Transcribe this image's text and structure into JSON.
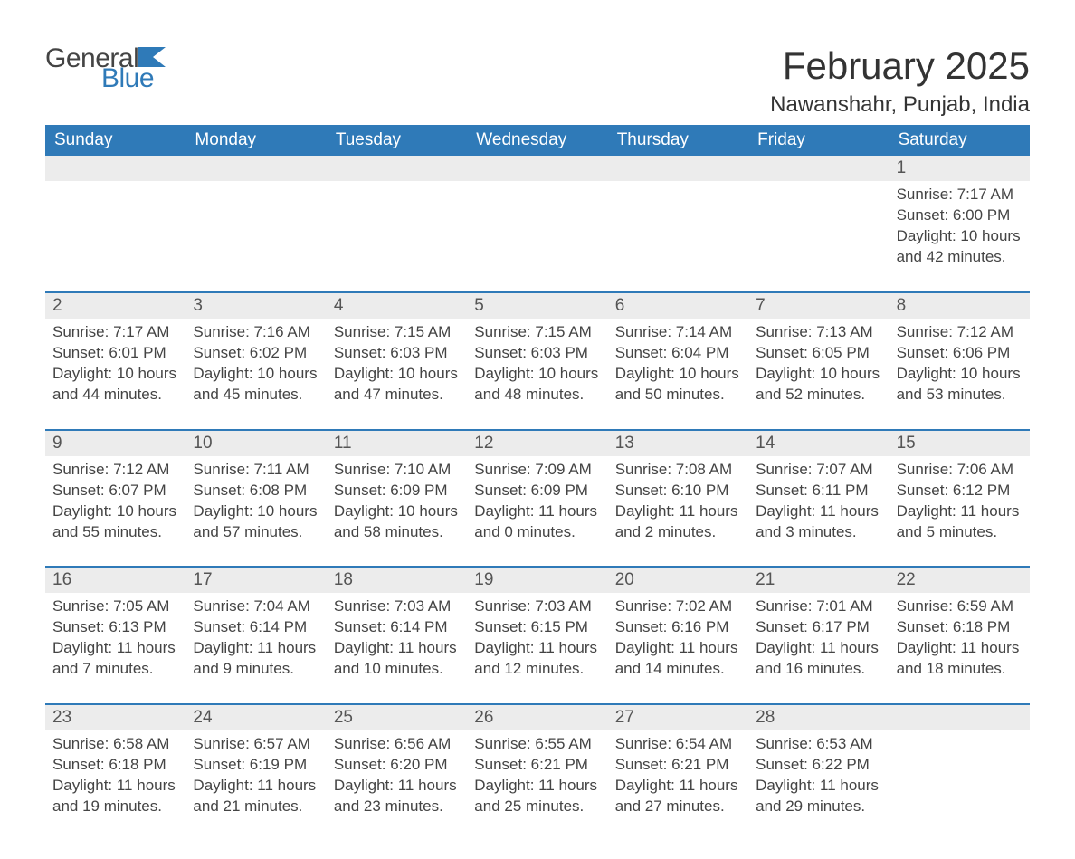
{
  "brand": {
    "part1": "General",
    "part2": "Blue"
  },
  "title": "February 2025",
  "subtitle": "Nawanshahr, Punjab, India",
  "colors": {
    "header_bg": "#2f7ab8",
    "header_text": "#ffffff",
    "daynum_bg": "#ececec",
    "rule": "#2f7ab8",
    "body_text": "#444444",
    "page_bg": "#ffffff"
  },
  "typography": {
    "title_size_pt": 32,
    "subtitle_size_pt": 18,
    "header_size_pt": 14,
    "body_size_pt": 13
  },
  "layout": {
    "type": "calendar",
    "columns": 7,
    "rows": 5,
    "first_weekday": "Sunday"
  },
  "weekdays": [
    "Sunday",
    "Monday",
    "Tuesday",
    "Wednesday",
    "Thursday",
    "Friday",
    "Saturday"
  ],
  "labels": {
    "sunrise": "Sunrise:",
    "sunset": "Sunset:",
    "daylight": "Daylight:"
  },
  "weeks": [
    [
      null,
      null,
      null,
      null,
      null,
      null,
      {
        "n": "1",
        "sunrise": "7:17 AM",
        "sunset": "6:00 PM",
        "daylight": "10 hours and 42 minutes."
      }
    ],
    [
      {
        "n": "2",
        "sunrise": "7:17 AM",
        "sunset": "6:01 PM",
        "daylight": "10 hours and 44 minutes."
      },
      {
        "n": "3",
        "sunrise": "7:16 AM",
        "sunset": "6:02 PM",
        "daylight": "10 hours and 45 minutes."
      },
      {
        "n": "4",
        "sunrise": "7:15 AM",
        "sunset": "6:03 PM",
        "daylight": "10 hours and 47 minutes."
      },
      {
        "n": "5",
        "sunrise": "7:15 AM",
        "sunset": "6:03 PM",
        "daylight": "10 hours and 48 minutes."
      },
      {
        "n": "6",
        "sunrise": "7:14 AM",
        "sunset": "6:04 PM",
        "daylight": "10 hours and 50 minutes."
      },
      {
        "n": "7",
        "sunrise": "7:13 AM",
        "sunset": "6:05 PM",
        "daylight": "10 hours and 52 minutes."
      },
      {
        "n": "8",
        "sunrise": "7:12 AM",
        "sunset": "6:06 PM",
        "daylight": "10 hours and 53 minutes."
      }
    ],
    [
      {
        "n": "9",
        "sunrise": "7:12 AM",
        "sunset": "6:07 PM",
        "daylight": "10 hours and 55 minutes."
      },
      {
        "n": "10",
        "sunrise": "7:11 AM",
        "sunset": "6:08 PM",
        "daylight": "10 hours and 57 minutes."
      },
      {
        "n": "11",
        "sunrise": "7:10 AM",
        "sunset": "6:09 PM",
        "daylight": "10 hours and 58 minutes."
      },
      {
        "n": "12",
        "sunrise": "7:09 AM",
        "sunset": "6:09 PM",
        "daylight": "11 hours and 0 minutes."
      },
      {
        "n": "13",
        "sunrise": "7:08 AM",
        "sunset": "6:10 PM",
        "daylight": "11 hours and 2 minutes."
      },
      {
        "n": "14",
        "sunrise": "7:07 AM",
        "sunset": "6:11 PM",
        "daylight": "11 hours and 3 minutes."
      },
      {
        "n": "15",
        "sunrise": "7:06 AM",
        "sunset": "6:12 PM",
        "daylight": "11 hours and 5 minutes."
      }
    ],
    [
      {
        "n": "16",
        "sunrise": "7:05 AM",
        "sunset": "6:13 PM",
        "daylight": "11 hours and 7 minutes."
      },
      {
        "n": "17",
        "sunrise": "7:04 AM",
        "sunset": "6:14 PM",
        "daylight": "11 hours and 9 minutes."
      },
      {
        "n": "18",
        "sunrise": "7:03 AM",
        "sunset": "6:14 PM",
        "daylight": "11 hours and 10 minutes."
      },
      {
        "n": "19",
        "sunrise": "7:03 AM",
        "sunset": "6:15 PM",
        "daylight": "11 hours and 12 minutes."
      },
      {
        "n": "20",
        "sunrise": "7:02 AM",
        "sunset": "6:16 PM",
        "daylight": "11 hours and 14 minutes."
      },
      {
        "n": "21",
        "sunrise": "7:01 AM",
        "sunset": "6:17 PM",
        "daylight": "11 hours and 16 minutes."
      },
      {
        "n": "22",
        "sunrise": "6:59 AM",
        "sunset": "6:18 PM",
        "daylight": "11 hours and 18 minutes."
      }
    ],
    [
      {
        "n": "23",
        "sunrise": "6:58 AM",
        "sunset": "6:18 PM",
        "daylight": "11 hours and 19 minutes."
      },
      {
        "n": "24",
        "sunrise": "6:57 AM",
        "sunset": "6:19 PM",
        "daylight": "11 hours and 21 minutes."
      },
      {
        "n": "25",
        "sunrise": "6:56 AM",
        "sunset": "6:20 PM",
        "daylight": "11 hours and 23 minutes."
      },
      {
        "n": "26",
        "sunrise": "6:55 AM",
        "sunset": "6:21 PM",
        "daylight": "11 hours and 25 minutes."
      },
      {
        "n": "27",
        "sunrise": "6:54 AM",
        "sunset": "6:21 PM",
        "daylight": "11 hours and 27 minutes."
      },
      {
        "n": "28",
        "sunrise": "6:53 AM",
        "sunset": "6:22 PM",
        "daylight": "11 hours and 29 minutes."
      },
      null
    ]
  ]
}
